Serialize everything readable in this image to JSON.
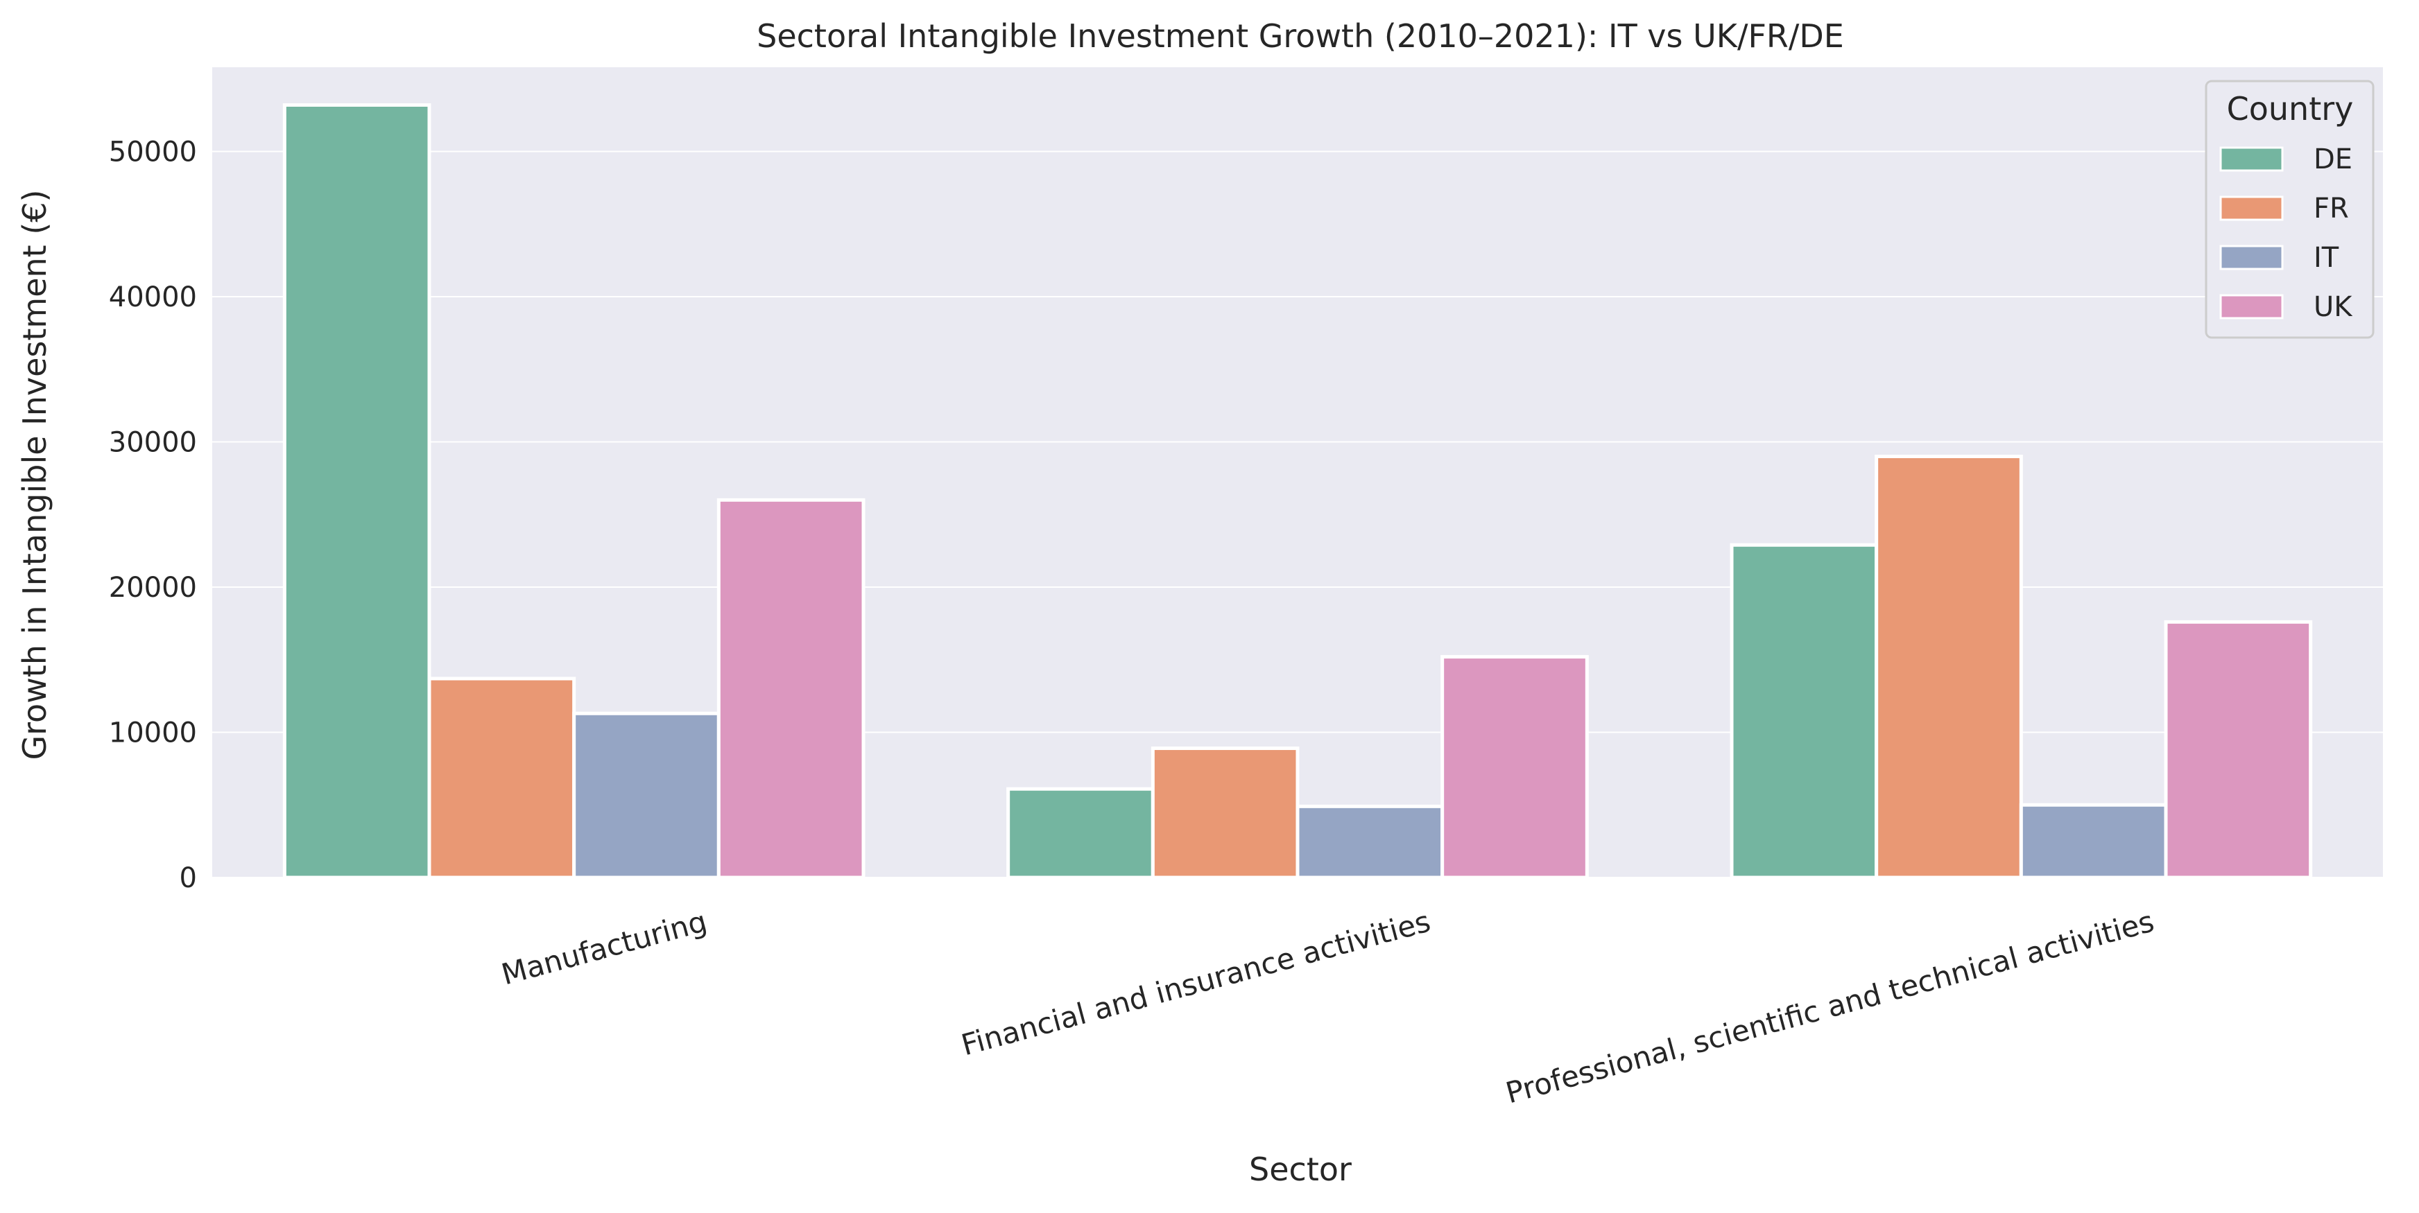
{
  "chart_data": {
    "type": "bar",
    "title": "Sectoral Intangible Investment Growth (2010–2021): IT vs UK/FR/DE",
    "xlabel": "Sector",
    "ylabel": "Growth in Intangible Investment (€)",
    "categories": [
      "Manufacturing",
      "Financial and insurance activities",
      "Professional, scientific and technical activities"
    ],
    "series": [
      {
        "name": "DE",
        "color": "#74b5a0",
        "values": [
          53200,
          6100,
          22900
        ]
      },
      {
        "name": "FR",
        "color": "#e99874",
        "values": [
          13700,
          8900,
          29000
        ]
      },
      {
        "name": "IT",
        "color": "#95a5c4",
        "values": [
          11300,
          4900,
          5000
        ]
      },
      {
        "name": "UK",
        "color": "#dc97bf",
        "values": [
          26000,
          15200,
          17600
        ]
      }
    ],
    "ylim": [
      0,
      55800
    ],
    "yticks": [
      0,
      10000,
      20000,
      30000,
      40000,
      50000
    ],
    "grid": true,
    "legend": {
      "title": "Country",
      "position": "top-right"
    },
    "background_color": "#eaeaf2"
  }
}
